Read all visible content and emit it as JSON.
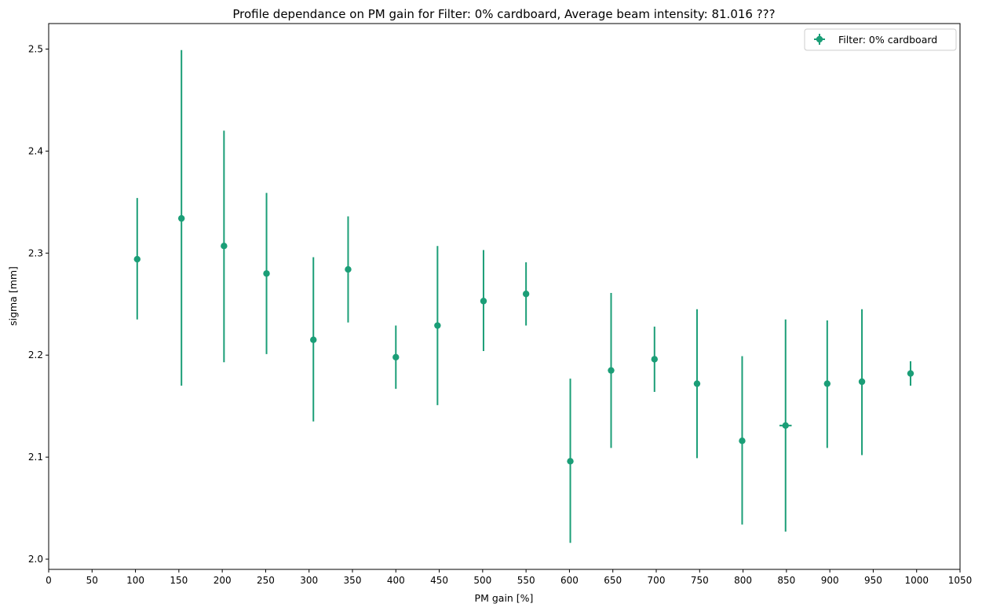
{
  "chart_data": {
    "type": "scatter",
    "title": "Profile dependance on PM gain for Filter: 0% cardboard, Average beam intensity: 81.016 ???",
    "xlabel": "PM gain [%]",
    "ylabel": "sigma [mm]",
    "xlim": [
      0,
      1050
    ],
    "ylim": [
      1.99,
      2.525
    ],
    "xticks": [
      0,
      50,
      100,
      150,
      200,
      250,
      300,
      350,
      400,
      450,
      500,
      550,
      600,
      650,
      700,
      750,
      800,
      850,
      900,
      950,
      1000,
      1050
    ],
    "yticks": [
      2.0,
      2.1,
      2.2,
      2.3,
      2.4,
      2.5
    ],
    "ytick_labels": [
      "2.0",
      "2.1",
      "2.2",
      "2.3",
      "2.4",
      "2.5"
    ],
    "grid": false,
    "legend": "top-right",
    "series": [
      {
        "name": "Filter: 0% cardboard",
        "color": "#1b9e77",
        "marker": "circle-with-errorbars",
        "points": [
          {
            "x": 102,
            "y": 2.294,
            "yerr_low": 2.235,
            "yerr_high": 2.354,
            "xerr": 0
          },
          {
            "x": 153,
            "y": 2.334,
            "yerr_low": 2.17,
            "yerr_high": 2.499,
            "xerr": 0
          },
          {
            "x": 202,
            "y": 2.307,
            "yerr_low": 2.193,
            "yerr_high": 2.42,
            "xerr": 0
          },
          {
            "x": 251,
            "y": 2.28,
            "yerr_low": 2.201,
            "yerr_high": 2.359,
            "xerr": 0
          },
          {
            "x": 305,
            "y": 2.215,
            "yerr_low": 2.135,
            "yerr_high": 2.296,
            "xerr": 0
          },
          {
            "x": 345,
            "y": 2.284,
            "yerr_low": 2.232,
            "yerr_high": 2.336,
            "xerr": 0
          },
          {
            "x": 400,
            "y": 2.198,
            "yerr_low": 2.167,
            "yerr_high": 2.229,
            "xerr": 0
          },
          {
            "x": 448,
            "y": 2.229,
            "yerr_low": 2.151,
            "yerr_high": 2.307,
            "xerr": 0
          },
          {
            "x": 501,
            "y": 2.253,
            "yerr_low": 2.204,
            "yerr_high": 2.303,
            "xerr": 0
          },
          {
            "x": 550,
            "y": 2.26,
            "yerr_low": 2.229,
            "yerr_high": 2.291,
            "xerr": 0
          },
          {
            "x": 601,
            "y": 2.096,
            "yerr_low": 2.016,
            "yerr_high": 2.177,
            "xerr": 0
          },
          {
            "x": 648,
            "y": 2.185,
            "yerr_low": 2.109,
            "yerr_high": 2.261,
            "xerr": 0
          },
          {
            "x": 698,
            "y": 2.196,
            "yerr_low": 2.164,
            "yerr_high": 2.228,
            "xerr": 0
          },
          {
            "x": 747,
            "y": 2.172,
            "yerr_low": 2.099,
            "yerr_high": 2.245,
            "xerr": 0
          },
          {
            "x": 799,
            "y": 2.116,
            "yerr_low": 2.034,
            "yerr_high": 2.199,
            "xerr": 0
          },
          {
            "x": 849,
            "y": 2.131,
            "yerr_low": 2.027,
            "yerr_high": 2.235,
            "xerr": 7
          },
          {
            "x": 897,
            "y": 2.172,
            "yerr_low": 2.109,
            "yerr_high": 2.234,
            "xerr": 0
          },
          {
            "x": 937,
            "y": 2.174,
            "yerr_low": 2.102,
            "yerr_high": 2.245,
            "xerr": 0
          },
          {
            "x": 993,
            "y": 2.182,
            "yerr_low": 2.17,
            "yerr_high": 2.194,
            "xerr": 0
          }
        ]
      }
    ]
  }
}
